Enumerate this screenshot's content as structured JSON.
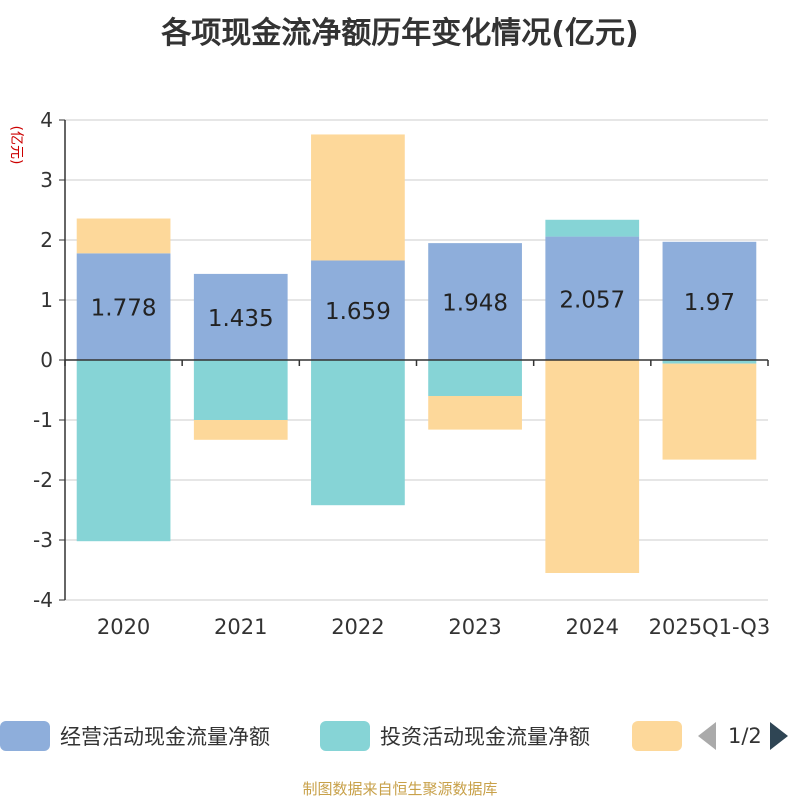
{
  "chart_data": {
    "type": "bar",
    "stacked": true,
    "title": "各项现金流净额历年变化情况(亿元)",
    "ylabel": "(亿元)",
    "xlabel": "",
    "ylim": [
      -4,
      4
    ],
    "yticks": [
      4,
      3,
      2,
      1,
      0,
      -1,
      -2,
      -3,
      -4
    ],
    "grid": true,
    "categories": [
      "2020",
      "2021",
      "2022",
      "2023",
      "2024",
      "2025Q1-Q3"
    ],
    "series": [
      {
        "name": "经营活动现金流量净额",
        "color": "#8eaedb",
        "values": [
          1.778,
          1.435,
          1.659,
          1.948,
          2.057,
          1.97
        ],
        "show_labels": true
      },
      {
        "name": "投资活动现金流量净额",
        "color": "#86d4d6",
        "values": [
          -3.02,
          -1.0,
          -2.42,
          -0.6,
          0.28,
          -0.06
        ],
        "show_labels": false
      },
      {
        "name": "",
        "color": "#fdd89a",
        "values": [
          0.58,
          -0.33,
          2.1,
          -0.56,
          -3.55,
          -1.6
        ],
        "show_labels": false
      }
    ],
    "legend_position": "bottom"
  },
  "legend": {
    "page_text": "1/2"
  },
  "source": "制图数据来自恒生聚源数据库"
}
